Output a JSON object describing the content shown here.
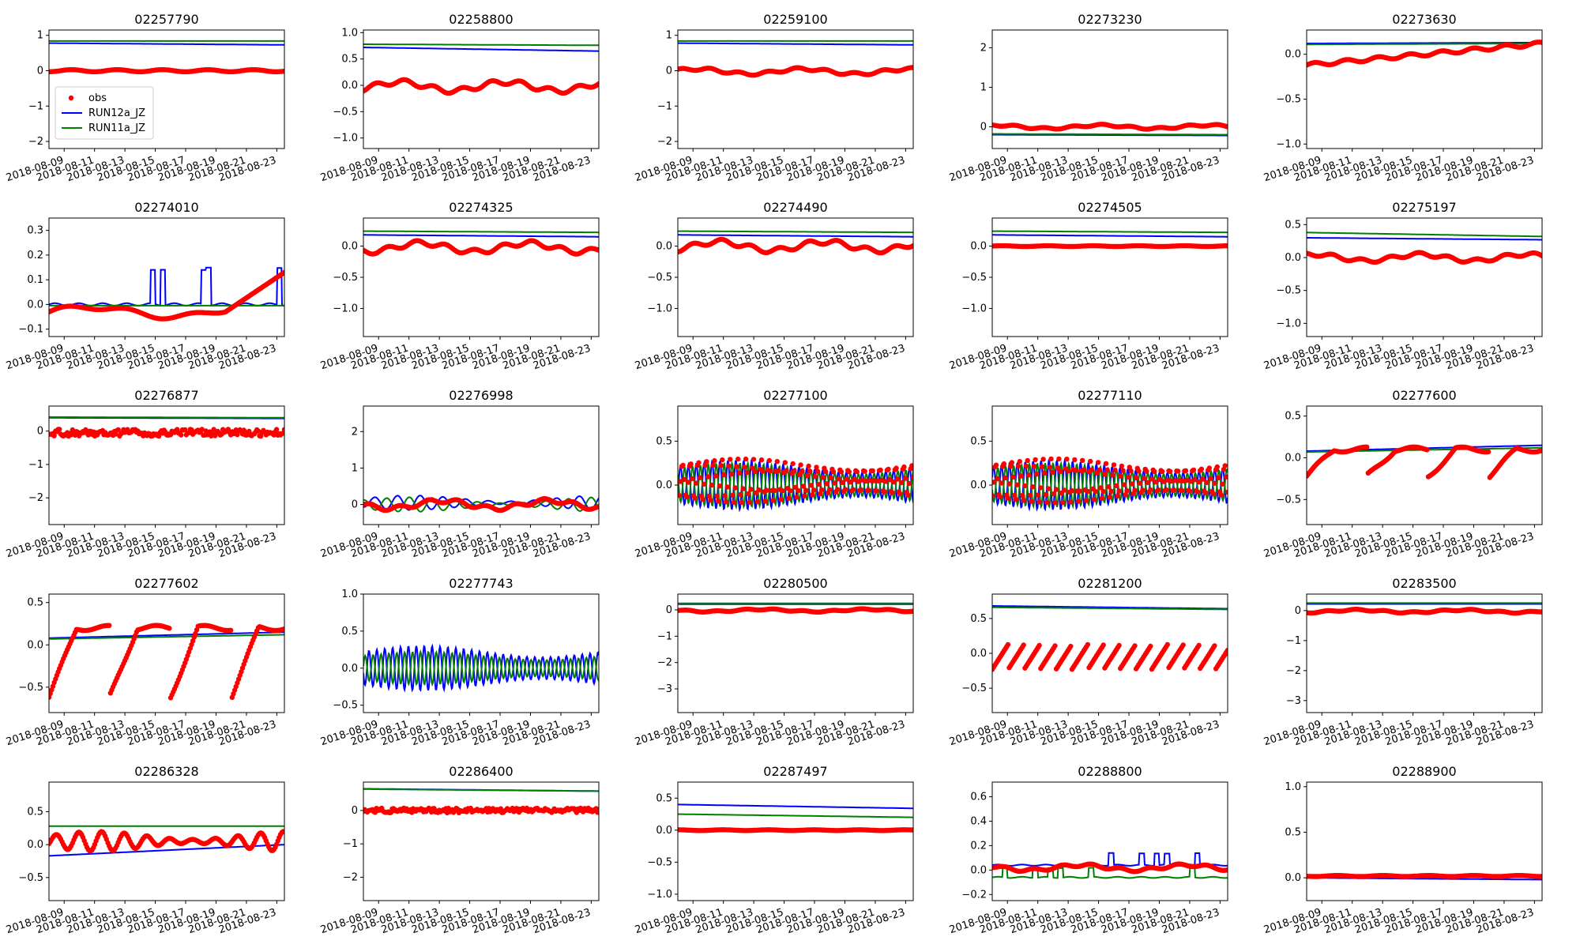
{
  "chart_data": {
    "type": "line",
    "layout": "5x5 grid of subplots",
    "x_ticks": [
      "2018-08-09",
      "2018-08-11",
      "2018-08-13",
      "2018-08-15",
      "2018-08-17",
      "2018-08-19",
      "2018-08-21",
      "2018-08-23"
    ],
    "x_range_days": [
      0,
      15.5
    ],
    "legend": {
      "placement": "lower-left of first subplot",
      "entries": [
        {
          "label": "obs",
          "style": "markers",
          "color": "#ff0000"
        },
        {
          "label": "RUN12a_JZ",
          "style": "line",
          "color": "#0000ff"
        },
        {
          "label": "RUN11a_JZ",
          "style": "line",
          "color": "#008000"
        }
      ]
    },
    "panels": [
      {
        "title": "02257790",
        "ylim": [
          -2.2,
          1.15
        ],
        "yticks": [
          -2,
          -1,
          0,
          1
        ],
        "obs": {
          "kind": "flat",
          "base": 0.0,
          "amp": 0.05
        },
        "run12a": {
          "kind": "flat",
          "base": 0.78,
          "end": 0.73
        },
        "run11a": {
          "kind": "flat",
          "base": 0.84,
          "end": 0.84
        }
      },
      {
        "title": "02258800",
        "ylim": [
          -1.2,
          1.05
        ],
        "yticks": [
          -1.0,
          -0.5,
          0.0,
          0.5,
          1.0
        ],
        "obs": {
          "kind": "wavy",
          "base": -0.02,
          "amp": 0.12
        },
        "run12a": {
          "kind": "flat",
          "base": 0.72,
          "end": 0.65
        },
        "run11a": {
          "kind": "flat",
          "base": 0.78,
          "end": 0.76
        }
      },
      {
        "title": "02259100",
        "ylim": [
          -2.2,
          1.15
        ],
        "yticks": [
          -2,
          -1,
          0,
          1
        ],
        "obs": {
          "kind": "wavy",
          "base": -0.02,
          "amp": 0.1
        },
        "run12a": {
          "kind": "flat",
          "base": 0.78,
          "end": 0.73
        },
        "run11a": {
          "kind": "flat",
          "base": 0.84,
          "end": 0.84
        }
      },
      {
        "title": "02273230",
        "ylim": [
          -0.55,
          2.45
        ],
        "yticks": [
          0,
          1,
          2
        ],
        "obs": {
          "kind": "wavy",
          "base": 0.0,
          "amp": 0.06
        },
        "run12a": {
          "kind": "flat",
          "base": -0.2,
          "end": -0.22
        },
        "run11a": {
          "kind": "flat",
          "base": -0.18,
          "end": -0.2
        }
      },
      {
        "title": "02273630",
        "ylim": [
          -1.05,
          0.27
        ],
        "yticks": [
          -1.0,
          -0.5,
          0.0
        ],
        "obs": {
          "kind": "ramp",
          "start": -0.12,
          "end": 0.12
        },
        "run12a": {
          "kind": "flat",
          "base": 0.12,
          "end": 0.13
        },
        "run11a": {
          "kind": "flat",
          "base": 0.11,
          "end": 0.12
        }
      },
      {
        "title": "02274010",
        "ylim": [
          -0.13,
          0.35
        ],
        "yticks": [
          -0.1,
          0.0,
          0.1,
          0.2,
          0.3
        ],
        "obs": {
          "kind": "ramp2",
          "start": -0.03,
          "end": 0.13
        },
        "run12a": {
          "kind": "spiky",
          "base": 0.0,
          "amp": 0.15
        },
        "run11a": {
          "kind": "flat",
          "base": -0.005,
          "end": -0.005
        }
      },
      {
        "title": "02274325",
        "ylim": [
          -1.45,
          0.45
        ],
        "yticks": [
          -1.0,
          -0.5,
          0.0
        ],
        "obs": {
          "kind": "wavy",
          "base": -0.02,
          "amp": 0.1
        },
        "run12a": {
          "kind": "flat",
          "base": 0.18,
          "end": 0.15
        },
        "run11a": {
          "kind": "flat",
          "base": 0.24,
          "end": 0.22
        }
      },
      {
        "title": "02274490",
        "ylim": [
          -1.45,
          0.45
        ],
        "yticks": [
          -1.0,
          -0.5,
          0.0
        ],
        "obs": {
          "kind": "wavy",
          "base": 0.0,
          "amp": 0.1
        },
        "run12a": {
          "kind": "flat",
          "base": 0.18,
          "end": 0.15
        },
        "run11a": {
          "kind": "flat",
          "base": 0.24,
          "end": 0.22
        }
      },
      {
        "title": "02274505",
        "ylim": [
          -1.45,
          0.45
        ],
        "yticks": [
          -1.0,
          -0.5,
          0.0
        ],
        "obs": {
          "kind": "flat",
          "base": 0.0,
          "amp": 0.01
        },
        "run12a": {
          "kind": "flat",
          "base": 0.18,
          "end": 0.15
        },
        "run11a": {
          "kind": "flat",
          "base": 0.24,
          "end": 0.22
        }
      },
      {
        "title": "02275197",
        "ylim": [
          -1.2,
          0.6
        ],
        "yticks": [
          -1.0,
          -0.5,
          0.0,
          0.5
        ],
        "obs": {
          "kind": "wavy",
          "base": 0.0,
          "amp": 0.07
        },
        "run12a": {
          "kind": "flat",
          "base": 0.3,
          "end": 0.27
        },
        "run11a": {
          "kind": "flat",
          "base": 0.38,
          "end": 0.32
        }
      },
      {
        "title": "02276877",
        "ylim": [
          -2.8,
          0.75
        ],
        "yticks": [
          -2,
          -1,
          0
        ],
        "obs": {
          "kind": "noisy",
          "base": -0.05,
          "amp": 0.15
        },
        "run12a": {
          "kind": "flat",
          "base": 0.4,
          "end": 0.38
        },
        "run11a": {
          "kind": "flat",
          "base": 0.42,
          "end": 0.4
        }
      },
      {
        "title": "02276998",
        "ylim": [
          -0.55,
          2.7
        ],
        "yticks": [
          0,
          1,
          2
        ],
        "obs": {
          "kind": "wavy",
          "base": 0.0,
          "amp": 0.15
        },
        "run12a": {
          "kind": "osc",
          "base": 0.05,
          "amp": 0.2
        },
        "run11a": {
          "kind": "osc",
          "base": 0.0,
          "amp": 0.2
        }
      },
      {
        "title": "02277100",
        "ylim": [
          -0.45,
          0.9
        ],
        "yticks": [
          0.0,
          0.5
        ],
        "obs": {
          "kind": "tide",
          "base": 0.05,
          "amp": 0.25
        },
        "run12a": {
          "kind": "tide",
          "base": 0.0,
          "amp": 0.28
        },
        "run11a": {
          "kind": "tide",
          "base": 0.0,
          "amp": 0.25
        }
      },
      {
        "title": "02277110",
        "ylim": [
          -0.45,
          0.9
        ],
        "yticks": [
          0.0,
          0.5
        ],
        "obs": {
          "kind": "tide",
          "base": 0.05,
          "amp": 0.25
        },
        "run12a": {
          "kind": "tide",
          "base": 0.0,
          "amp": 0.28
        },
        "run11a": {
          "kind": "tide",
          "base": 0.0,
          "amp": 0.25
        }
      },
      {
        "title": "02277600",
        "ylim": [
          -0.8,
          0.62
        ],
        "yticks": [
          -0.5,
          0.0,
          0.5
        ],
        "obs": {
          "kind": "recover",
          "start": -0.22,
          "end": 0.1
        },
        "run12a": {
          "kind": "flat",
          "base": 0.08,
          "end": 0.15
        },
        "run11a": {
          "kind": "flat",
          "base": 0.07,
          "end": 0.12
        }
      },
      {
        "title": "02277602",
        "ylim": [
          -0.8,
          0.6
        ],
        "yticks": [
          -0.5,
          0.0,
          0.5
        ],
        "obs": {
          "kind": "recover",
          "start": -0.62,
          "end": 0.2
        },
        "run12a": {
          "kind": "flat",
          "base": 0.08,
          "end": 0.15
        },
        "run11a": {
          "kind": "flat",
          "base": 0.07,
          "end": 0.12
        }
      },
      {
        "title": "02277743",
        "ylim": [
          -0.6,
          1.0
        ],
        "yticks": [
          -0.5,
          0.0,
          0.5,
          1.0
        ],
        "obs": {
          "kind": "none"
        },
        "run12a": {
          "kind": "tide",
          "base": 0.0,
          "amp": 0.3
        },
        "run11a": {
          "kind": "tide",
          "base": 0.0,
          "amp": 0.22
        }
      },
      {
        "title": "02280500",
        "ylim": [
          -3.9,
          0.6
        ],
        "yticks": [
          -3,
          -2,
          -1,
          0
        ],
        "obs": {
          "kind": "wavy",
          "base": -0.02,
          "amp": 0.06
        },
        "run12a": {
          "kind": "flat",
          "base": 0.22,
          "end": 0.22
        },
        "run11a": {
          "kind": "flat",
          "base": 0.25,
          "end": 0.25
        }
      },
      {
        "title": "02281200",
        "ylim": [
          -0.85,
          0.85
        ],
        "yticks": [
          -0.5,
          0.0,
          0.5
        ],
        "obs": {
          "kind": "sawtooth",
          "base": -0.05,
          "amp": 0.18
        },
        "run12a": {
          "kind": "flat",
          "base": 0.68,
          "end": 0.64
        },
        "run11a": {
          "kind": "flat",
          "base": 0.66,
          "end": 0.63
        }
      },
      {
        "title": "02283500",
        "ylim": [
          -3.4,
          0.55
        ],
        "yticks": [
          -3,
          -2,
          -1,
          0
        ],
        "obs": {
          "kind": "wavy",
          "base": -0.02,
          "amp": 0.06
        },
        "run12a": {
          "kind": "flat",
          "base": 0.22,
          "end": 0.22
        },
        "run11a": {
          "kind": "flat",
          "base": 0.25,
          "end": 0.25
        }
      },
      {
        "title": "02286328",
        "ylim": [
          -0.85,
          0.95
        ],
        "yticks": [
          -0.5,
          0.0,
          0.5
        ],
        "obs": {
          "kind": "osc",
          "base": 0.05,
          "amp": 0.15
        },
        "run12a": {
          "kind": "flat",
          "base": -0.17,
          "end": 0.0
        },
        "run11a": {
          "kind": "flat",
          "base": 0.28,
          "end": 0.28
        }
      },
      {
        "title": "02286400",
        "ylim": [
          -2.7,
          0.85
        ],
        "yticks": [
          -2,
          -1,
          0
        ],
        "obs": {
          "kind": "noisy",
          "base": 0.0,
          "amp": 0.1
        },
        "run12a": {
          "kind": "flat",
          "base": 0.65,
          "end": 0.58
        },
        "run11a": {
          "kind": "flat",
          "base": 0.64,
          "end": 0.58
        }
      },
      {
        "title": "02287497",
        "ylim": [
          -1.1,
          0.75
        ],
        "yticks": [
          -1.0,
          -0.5,
          0.0,
          0.5
        ],
        "obs": {
          "kind": "flat",
          "base": 0.0,
          "amp": 0.01
        },
        "run12a": {
          "kind": "flat",
          "base": 0.4,
          "end": 0.34
        },
        "run11a": {
          "kind": "flat",
          "base": 0.25,
          "end": 0.2
        }
      },
      {
        "title": "02288800",
        "ylim": [
          -0.25,
          0.72
        ],
        "yticks": [
          -0.2,
          0.0,
          0.2,
          0.4,
          0.6
        ],
        "obs": {
          "kind": "wavy",
          "base": 0.02,
          "amp": 0.03
        },
        "run12a": {
          "kind": "spiky",
          "base": 0.04,
          "amp": 0.1
        },
        "run11a": {
          "kind": "spiky",
          "base": -0.06,
          "amp": 0.08
        }
      },
      {
        "title": "02288900",
        "ylim": [
          -0.25,
          1.05
        ],
        "yticks": [
          0.0,
          0.5,
          1.0
        ],
        "obs": {
          "kind": "flat",
          "base": 0.02,
          "amp": 0.01
        },
        "run12a": {
          "kind": "flat",
          "base": 0.0,
          "end": -0.02
        },
        "run11a": {
          "kind": "flat",
          "base": 0.03,
          "end": 0.02
        }
      }
    ]
  }
}
